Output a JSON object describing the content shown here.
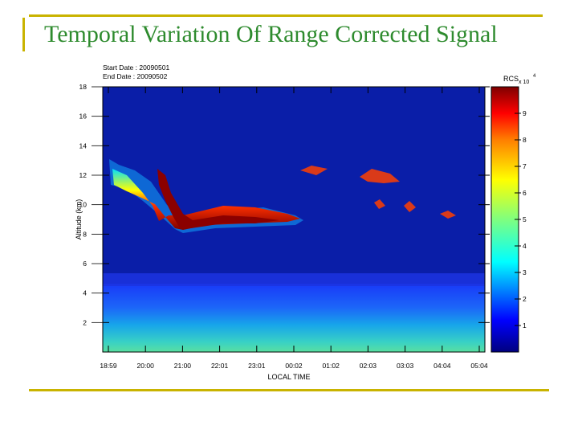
{
  "slide": {
    "title": "Temporal Variation Of Range Corrected Signal"
  },
  "chart_data": {
    "type": "heatmap",
    "start_date_label": "Start Date : 20090501",
    "end_date_label": "End Date : 20090502",
    "xlabel": "LOCAL TIME",
    "ylabel": "Altitude (km)",
    "x_ticks": [
      "18:59",
      "20:00",
      "21:00",
      "22:01",
      "23:01",
      "00:02",
      "01:02",
      "02:03",
      "03:03",
      "04:04",
      "05:04"
    ],
    "y_ticks": [
      2,
      4,
      6,
      8,
      10,
      12,
      14,
      16,
      18
    ],
    "ylim": [
      0,
      18
    ],
    "colorbar": {
      "label": "RCS",
      "scale_label": "x 10",
      "scale_exponent": "4",
      "ticks": [
        1,
        2,
        3,
        4,
        5,
        6,
        7,
        8,
        9
      ],
      "range": [
        0,
        10
      ]
    },
    "colors": {
      "background": "#0a1ea8",
      "colormap": [
        "#00007f",
        "#0000ff",
        "#00ffff",
        "#7fff7f",
        "#ffff00",
        "#ff7f00",
        "#ff0000",
        "#7f0000"
      ]
    }
  }
}
